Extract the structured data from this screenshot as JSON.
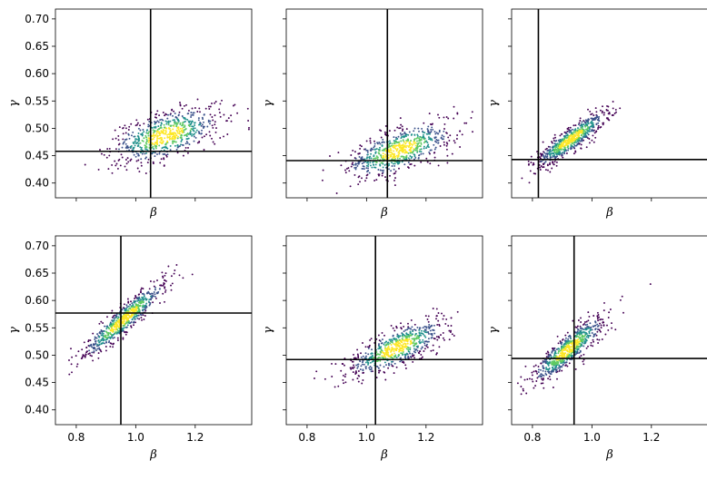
{
  "chart_data": [
    {
      "type": "scatter",
      "panel": 1,
      "xlabel": "β",
      "ylabel": "γ",
      "ref_x": 1.05,
      "ref_y": 0.458,
      "cloud": {
        "center": [
          1.1,
          0.487
        ],
        "spread": [
          0.09,
          0.025
        ],
        "rho": 0.55
      }
    },
    {
      "type": "scatter",
      "panel": 2,
      "xlabel": "β",
      "ylabel": "γ",
      "ref_x": 1.07,
      "ref_y": 0.441,
      "cloud": {
        "center": [
          1.11,
          0.46
        ],
        "spread": [
          0.09,
          0.025
        ],
        "rho": 0.65
      }
    },
    {
      "type": "scatter",
      "panel": 3,
      "xlabel": "β",
      "ylabel": "γ",
      "ref_x": 0.82,
      "ref_y": 0.443,
      "cloud": {
        "center": [
          0.93,
          0.48
        ],
        "spread": [
          0.06,
          0.025
        ],
        "rho": 0.9
      }
    },
    {
      "type": "scatter",
      "panel": 4,
      "xlabel": "β",
      "ylabel": "γ",
      "ref_x": 0.95,
      "ref_y": 0.577,
      "cloud": {
        "center": [
          0.96,
          0.565
        ],
        "spread": [
          0.07,
          0.035
        ],
        "rho": 0.93
      }
    },
    {
      "type": "scatter",
      "panel": 5,
      "xlabel": "β",
      "ylabel": "γ",
      "ref_x": 1.03,
      "ref_y": 0.492,
      "cloud": {
        "center": [
          1.1,
          0.513
        ],
        "spread": [
          0.08,
          0.025
        ],
        "rho": 0.75
      }
    },
    {
      "type": "scatter",
      "panel": 6,
      "xlabel": "β",
      "ylabel": "γ",
      "ref_x": 0.94,
      "ref_y": 0.494,
      "cloud": {
        "center": [
          0.92,
          0.51
        ],
        "spread": [
          0.06,
          0.03
        ],
        "rho": 0.88
      }
    }
  ],
  "axes": {
    "xlim": [
      0.73,
      1.39
    ],
    "ylim": [
      0.373,
      0.718
    ],
    "xticks": [
      0.8,
      1.0,
      1.2
    ],
    "xtick_labels": [
      "0.8",
      "1.0",
      "1.2"
    ],
    "yticks": [
      0.4,
      0.45,
      0.5,
      0.55,
      0.6,
      0.65,
      0.7
    ],
    "ytick_labels": [
      "0.40",
      "0.45",
      "0.50",
      "0.55",
      "0.60",
      "0.65",
      "0.70"
    ],
    "shared_x": true,
    "shared_y": true,
    "grid": false
  },
  "colors": {
    "low": "#440154",
    "mid_low": "#3b528b",
    "mid": "#21918c",
    "mid_high": "#5ec962",
    "high": "#fde725",
    "ref_line": "#000000"
  },
  "points_per_panel": 700,
  "seed": 7
}
